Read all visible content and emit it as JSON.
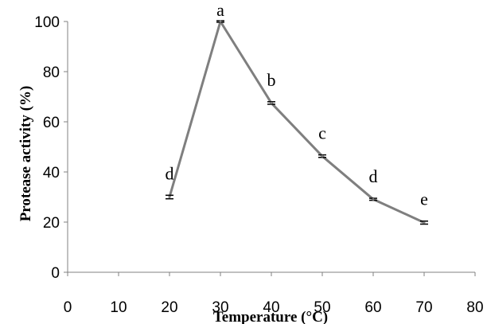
{
  "chart_data": {
    "type": "line",
    "title": "",
    "xlabel": "Temperature (°C)",
    "ylabel": "Protease activity (%)",
    "xlim": [
      0,
      80
    ],
    "ylim": [
      0,
      100
    ],
    "xticks": [
      "0",
      "10",
      "20",
      "30",
      "40",
      "50",
      "60",
      "70",
      "80"
    ],
    "yticks": [
      "0",
      "20",
      "40",
      "60",
      "80",
      "100"
    ],
    "grid": false,
    "legend": "none",
    "series": [
      {
        "x": [
          20,
          30,
          40,
          50,
          60,
          70
        ],
        "y": [
          30,
          100,
          67.5,
          46.3,
          29.1,
          19.8
        ],
        "error": [
          0.7,
          0.3,
          0.5,
          0.5,
          0.4,
          0.6
        ],
        "labels": [
          "d",
          "a",
          "b",
          "c",
          "d",
          "e"
        ],
        "color": "#7f7f7f"
      }
    ],
    "colors": {
      "line": "#7f7f7f",
      "axis": "#808080",
      "text": "#000000"
    }
  }
}
